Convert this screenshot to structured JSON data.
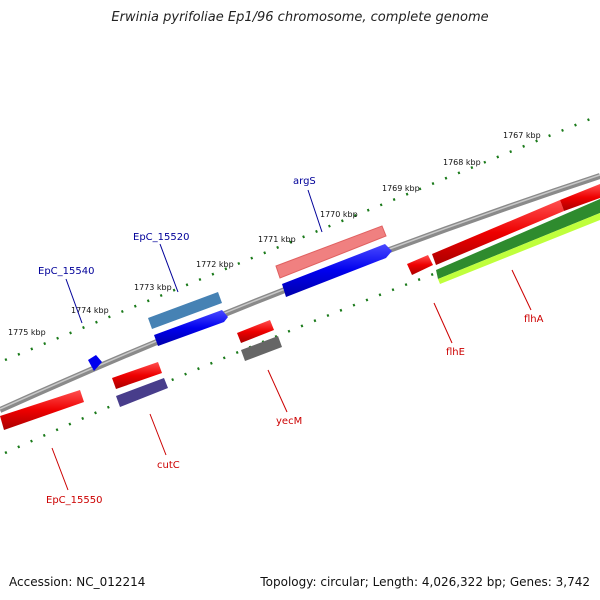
{
  "title": "Erwinia pyrifoliae Ep1/96 chromosome, complete genome",
  "footer": {
    "accession": "Accession: NC_012214",
    "summary": "Topology: circular; Length: 4,026,322 bp; Genes: 3,742"
  },
  "ticks": [
    "1767 kbp",
    "1768 kbp",
    "1769 kbp",
    "1770 kbp",
    "1771 kbp",
    "1772 kbp",
    "1773 kbp",
    "1774 kbp",
    "1775 kbp"
  ],
  "genes": {
    "argS": "argS",
    "EpC_15520": "EpC_15520",
    "EpC_15540": "EpC_15540",
    "flhA": "flhA",
    "flhE": "flhE",
    "yecM": "yecM",
    "cutC": "cutC",
    "EpC_15550": "EpC_15550"
  },
  "colors": {
    "forward_label": "#000099",
    "reverse_label": "#cc0000",
    "backbone": "#7a7a7a",
    "tick": "#1a7a1a"
  }
}
